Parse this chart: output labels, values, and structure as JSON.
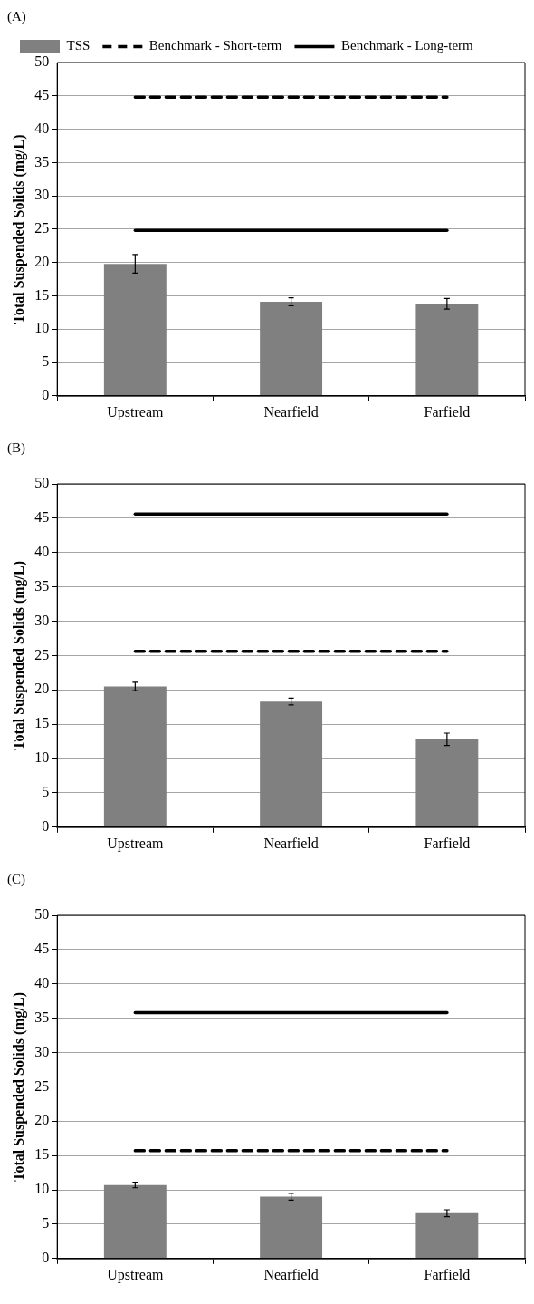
{
  "chart_data": [
    {
      "type": "bar",
      "title": "(A)",
      "ylabel": "Total Suspended Solids (mg/L)",
      "categories": [
        "Upstream",
        "Nearfield",
        "Farfield"
      ],
      "ylim": [
        0,
        50
      ],
      "yticks": [
        0,
        5,
        10,
        15,
        20,
        25,
        30,
        35,
        40,
        45,
        50
      ],
      "grid": "y",
      "legend": "top left",
      "marker": "none",
      "series": [
        {
          "name": "TSS",
          "color": "#808080",
          "values": [
            19.8,
            14.1,
            13.8
          ],
          "errors": [
            1.4,
            0.6,
            0.8
          ]
        },
        {
          "name": "Benchmark - Short-term",
          "type": "line",
          "line_style": "dashed",
          "color": "#000000",
          "values": [
            44.8,
            44.8,
            44.8
          ]
        },
        {
          "name": "Benchmark - Long-term",
          "type": "line",
          "line_style": "solid",
          "color": "#000000",
          "values": [
            24.8,
            24.8,
            24.8
          ]
        }
      ]
    },
    {
      "type": "bar",
      "title": "(B)",
      "ylabel": "Total Suspended Solids (mg/L)",
      "categories": [
        "Upstream",
        "Nearfield",
        "Farfield"
      ],
      "ylim": [
        0,
        50
      ],
      "yticks": [
        0,
        5,
        10,
        15,
        20,
        25,
        30,
        35,
        40,
        45,
        50
      ],
      "grid": "y",
      "legend": false,
      "marker": "none",
      "series": [
        {
          "color": "#808080",
          "values": [
            20.5,
            18.3,
            12.8
          ],
          "errors": [
            0.6,
            0.5,
            0.9
          ]
        },
        {
          "type": "line",
          "line_style": "dashed",
          "color": "#000000",
          "values": [
            25.6,
            25.6,
            25.6
          ]
        },
        {
          "type": "line",
          "line_style": "solid",
          "color": "#000000",
          "values": [
            45.6,
            45.6,
            45.6
          ]
        }
      ]
    },
    {
      "type": "bar",
      "title": "(C)",
      "ylabel": "Total Suspended Solids (mg/L)",
      "categories": [
        "Upstream",
        "Nearfield",
        "Farfield"
      ],
      "ylim": [
        0,
        50
      ],
      "yticks": [
        0,
        5,
        10,
        15,
        20,
        25,
        30,
        35,
        40,
        45,
        50
      ],
      "grid": "y",
      "legend": false,
      "marker": "none",
      "series": [
        {
          "color": "#808080",
          "values": [
            10.7,
            9.0,
            6.6
          ],
          "errors": [
            0.4,
            0.5,
            0.5
          ]
        },
        {
          "type": "line",
          "line_style": "dashed",
          "color": "#000000",
          "values": [
            15.7,
            15.7,
            15.7
          ]
        },
        {
          "type": "line",
          "line_style": "solid",
          "color": "#000000",
          "values": [
            35.8,
            35.8,
            35.8
          ]
        }
      ]
    }
  ]
}
